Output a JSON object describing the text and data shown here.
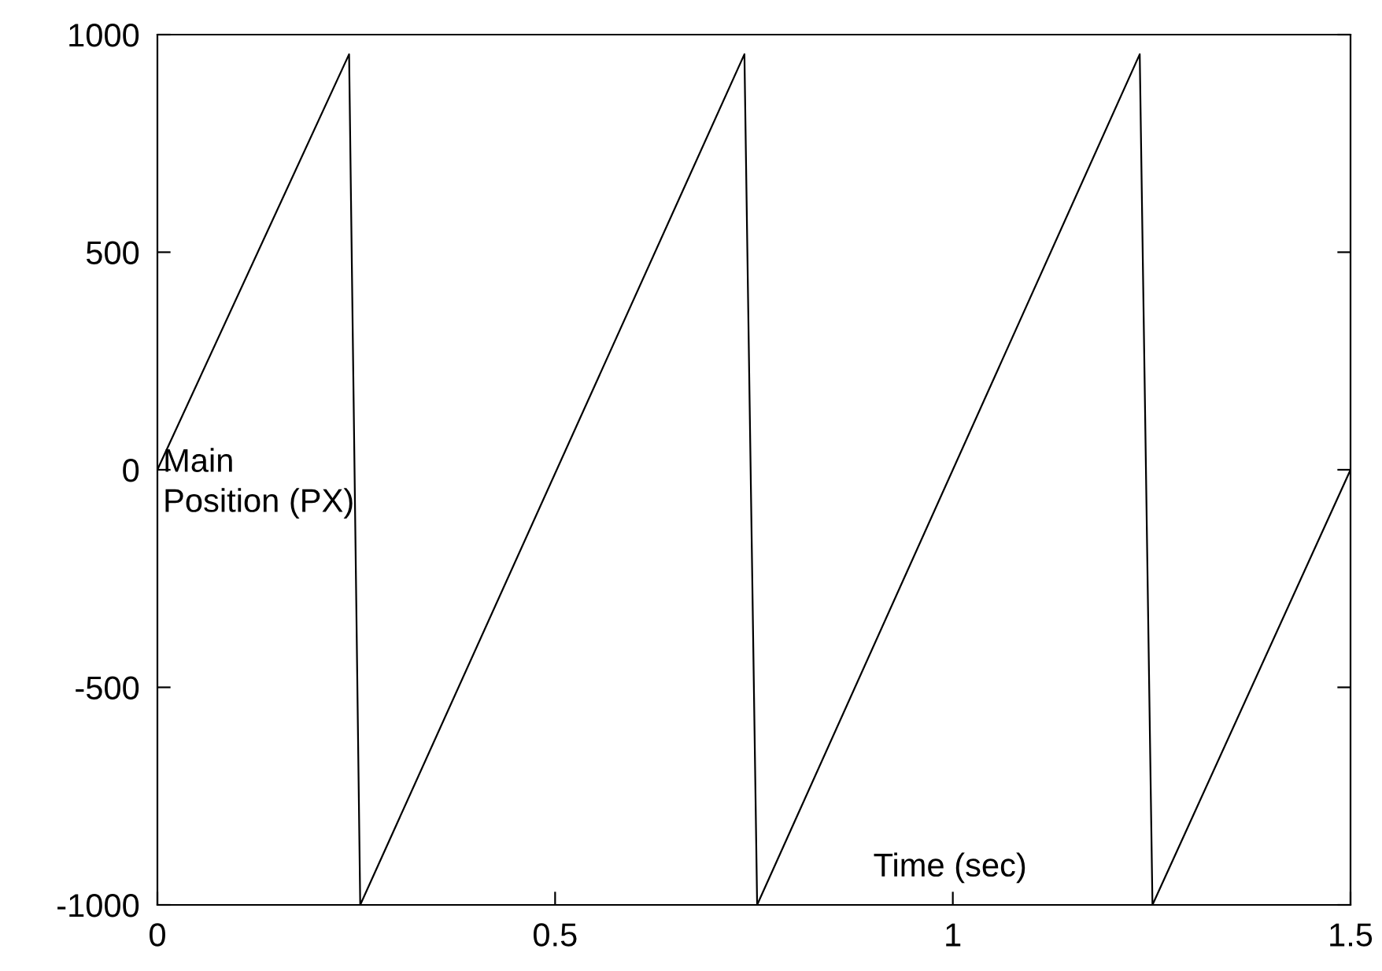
{
  "chart_data": {
    "type": "line",
    "xlabel": "Time (sec)",
    "ylabel": "Main\nPosition (PX)",
    "x": [
      0,
      0.241,
      0.255,
      0.738,
      0.754,
      1.235,
      1.251,
      1.5
    ],
    "series": [
      {
        "color": "#000000",
        "values": [
          0,
          955,
          -1000,
          955,
          -1000,
          955,
          -1000,
          0
        ]
      }
    ],
    "xlim": [
      0,
      1.5
    ],
    "xticks": [
      0,
      0.5,
      1,
      1.5
    ],
    "ylim": [
      -1000,
      1000
    ],
    "yticks": [
      -1000,
      -500,
      0,
      500,
      1000
    ],
    "grid": false,
    "legend": false,
    "marker": "none",
    "line_style": "solid"
  }
}
